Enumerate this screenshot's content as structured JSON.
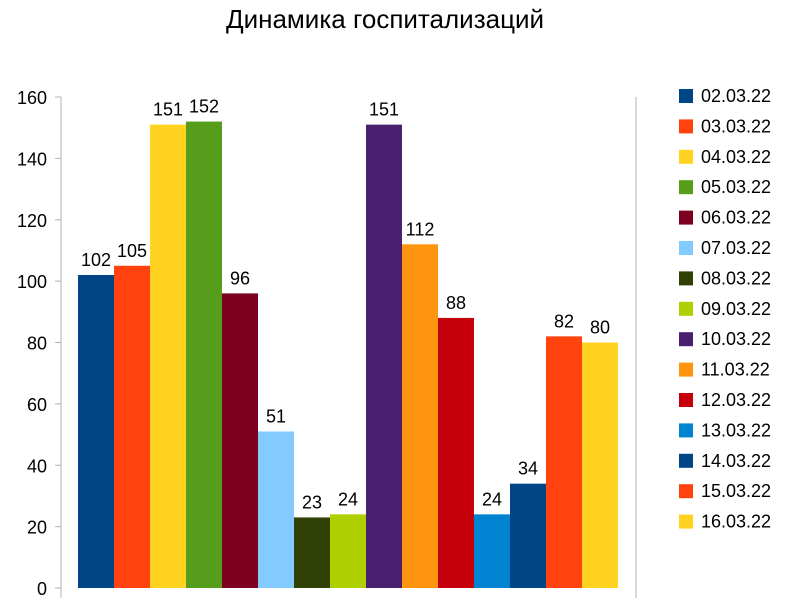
{
  "chart_data": {
    "type": "bar",
    "title": "Динамика госпитализаций",
    "xlabel": "",
    "ylabel": "",
    "ylim": [
      0,
      160
    ],
    "yticks": [
      0,
      20,
      40,
      60,
      80,
      100,
      120,
      140,
      160
    ],
    "grid": "vertical-only",
    "legend_position": "right",
    "series": [
      {
        "name": "02.03.22",
        "value": 102,
        "color": "#004586"
      },
      {
        "name": "03.03.22",
        "value": 105,
        "color": "#ff420e"
      },
      {
        "name": "04.03.22",
        "value": 151,
        "color": "#ffd320"
      },
      {
        "name": "05.03.22",
        "value": 152,
        "color": "#579d1c"
      },
      {
        "name": "06.03.22",
        "value": 96,
        "color": "#7e0021"
      },
      {
        "name": "07.03.22",
        "value": 51,
        "color": "#83caff"
      },
      {
        "name": "08.03.22",
        "value": 23,
        "color": "#314004"
      },
      {
        "name": "09.03.22",
        "value": 24,
        "color": "#aecf00"
      },
      {
        "name": "10.03.22",
        "value": 151,
        "color": "#4b1f6f"
      },
      {
        "name": "11.03.22",
        "value": 112,
        "color": "#ff950e"
      },
      {
        "name": "12.03.22",
        "value": 88,
        "color": "#c5000b"
      },
      {
        "name": "13.03.22",
        "value": 24,
        "color": "#0084d1"
      },
      {
        "name": "14.03.22",
        "value": 34,
        "color": "#004586"
      },
      {
        "name": "15.03.22",
        "value": 82,
        "color": "#ff420e"
      },
      {
        "name": "16.03.22",
        "value": 80,
        "color": "#ffd320"
      }
    ]
  }
}
